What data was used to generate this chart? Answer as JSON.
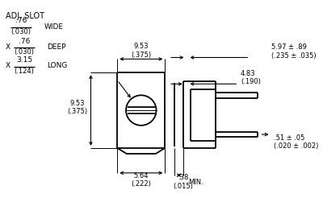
{
  "bg_color": "#ffffff",
  "line_color": "#000000",
  "text_color": "#000000",
  "figsize": [
    4.0,
    2.46
  ],
  "dpi": 100,
  "annotations": {
    "adj_slot": "ADJ. SLOT",
    "wide_label": "WIDE",
    "deep_label": "DEEP",
    "long_label": "LONG",
    "dim_9_53_top": "9.53\n(.375)",
    "dim_9_53_left": "9.53\n(.375)",
    "dim_5_64": "5.64\n(.222)",
    "dim_597": "5.97 ± .89\n(.235 ± .035)",
    "dim_483": "4.83\n(.190)",
    "dim_051": ".51 ± .05\n(.020 ± .002)",
    "dim_038": ".38\n(.015)",
    "min_label": "MIN.",
    "x_label": "X"
  }
}
